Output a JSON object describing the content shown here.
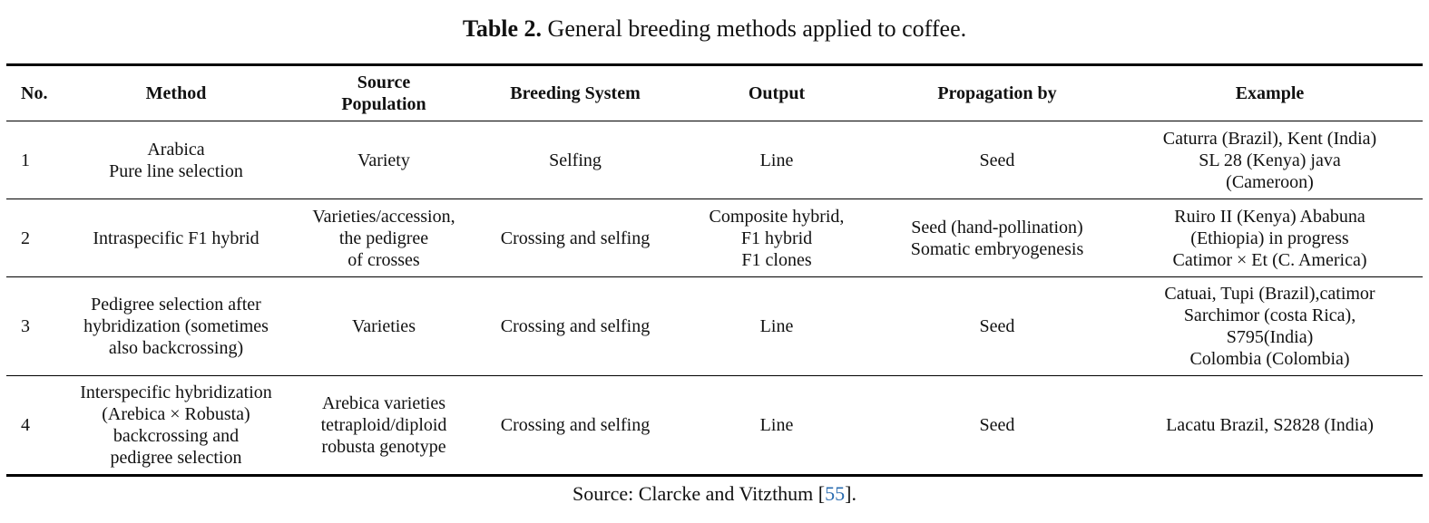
{
  "caption": {
    "label": "Table 2.",
    "text": "General breeding methods applied to coffee."
  },
  "table": {
    "headers": [
      "No.",
      "Method",
      "Source\nPopulation",
      "Breeding System",
      "Output",
      "Propagation by",
      "Example"
    ],
    "rows": [
      [
        "1",
        "Arabica\nPure line selection",
        "Variety",
        "Selfing",
        "Line",
        "Seed",
        "Caturra (Brazil), Kent (India)\nSL 28 (Kenya) java\n(Cameroon)"
      ],
      [
        "2",
        "Intraspecific F1 hybrid",
        "Varieties/accession,\nthe pedigree\nof crosses",
        "Crossing and selfing",
        "Composite hybrid,\nF1 hybrid\nF1 clones",
        "Seed (hand-pollination)\nSomatic embryogenesis",
        "Ruiro II (Kenya) Ababuna\n(Ethiopia) in progress\nCatimor × Et (C. America)"
      ],
      [
        "3",
        "Pedigree selection after\nhybridization (sometimes\nalso backcrossing)",
        "Varieties",
        "Crossing and selfing",
        "Line",
        "Seed",
        "Catuai, Tupi (Brazil),catimor\nSarchimor (costa Rica),\nS795(India)\nColombia (Colombia)"
      ],
      [
        "4",
        "Interspecific hybridization\n(Arebica × Robusta)\nbackcrossing and\npedigree selection",
        "Arebica varieties\ntetraploid/diploid\nrobusta genotype",
        "Crossing and selfing",
        "Line",
        "Seed",
        "Lacatu Brazil, S2828 (India)"
      ]
    ]
  },
  "source": {
    "prefix": "Source: Clarcke and Vitzthum [",
    "ref": "55",
    "suffix": "].",
    "ref_color": "#2b6cb0"
  }
}
